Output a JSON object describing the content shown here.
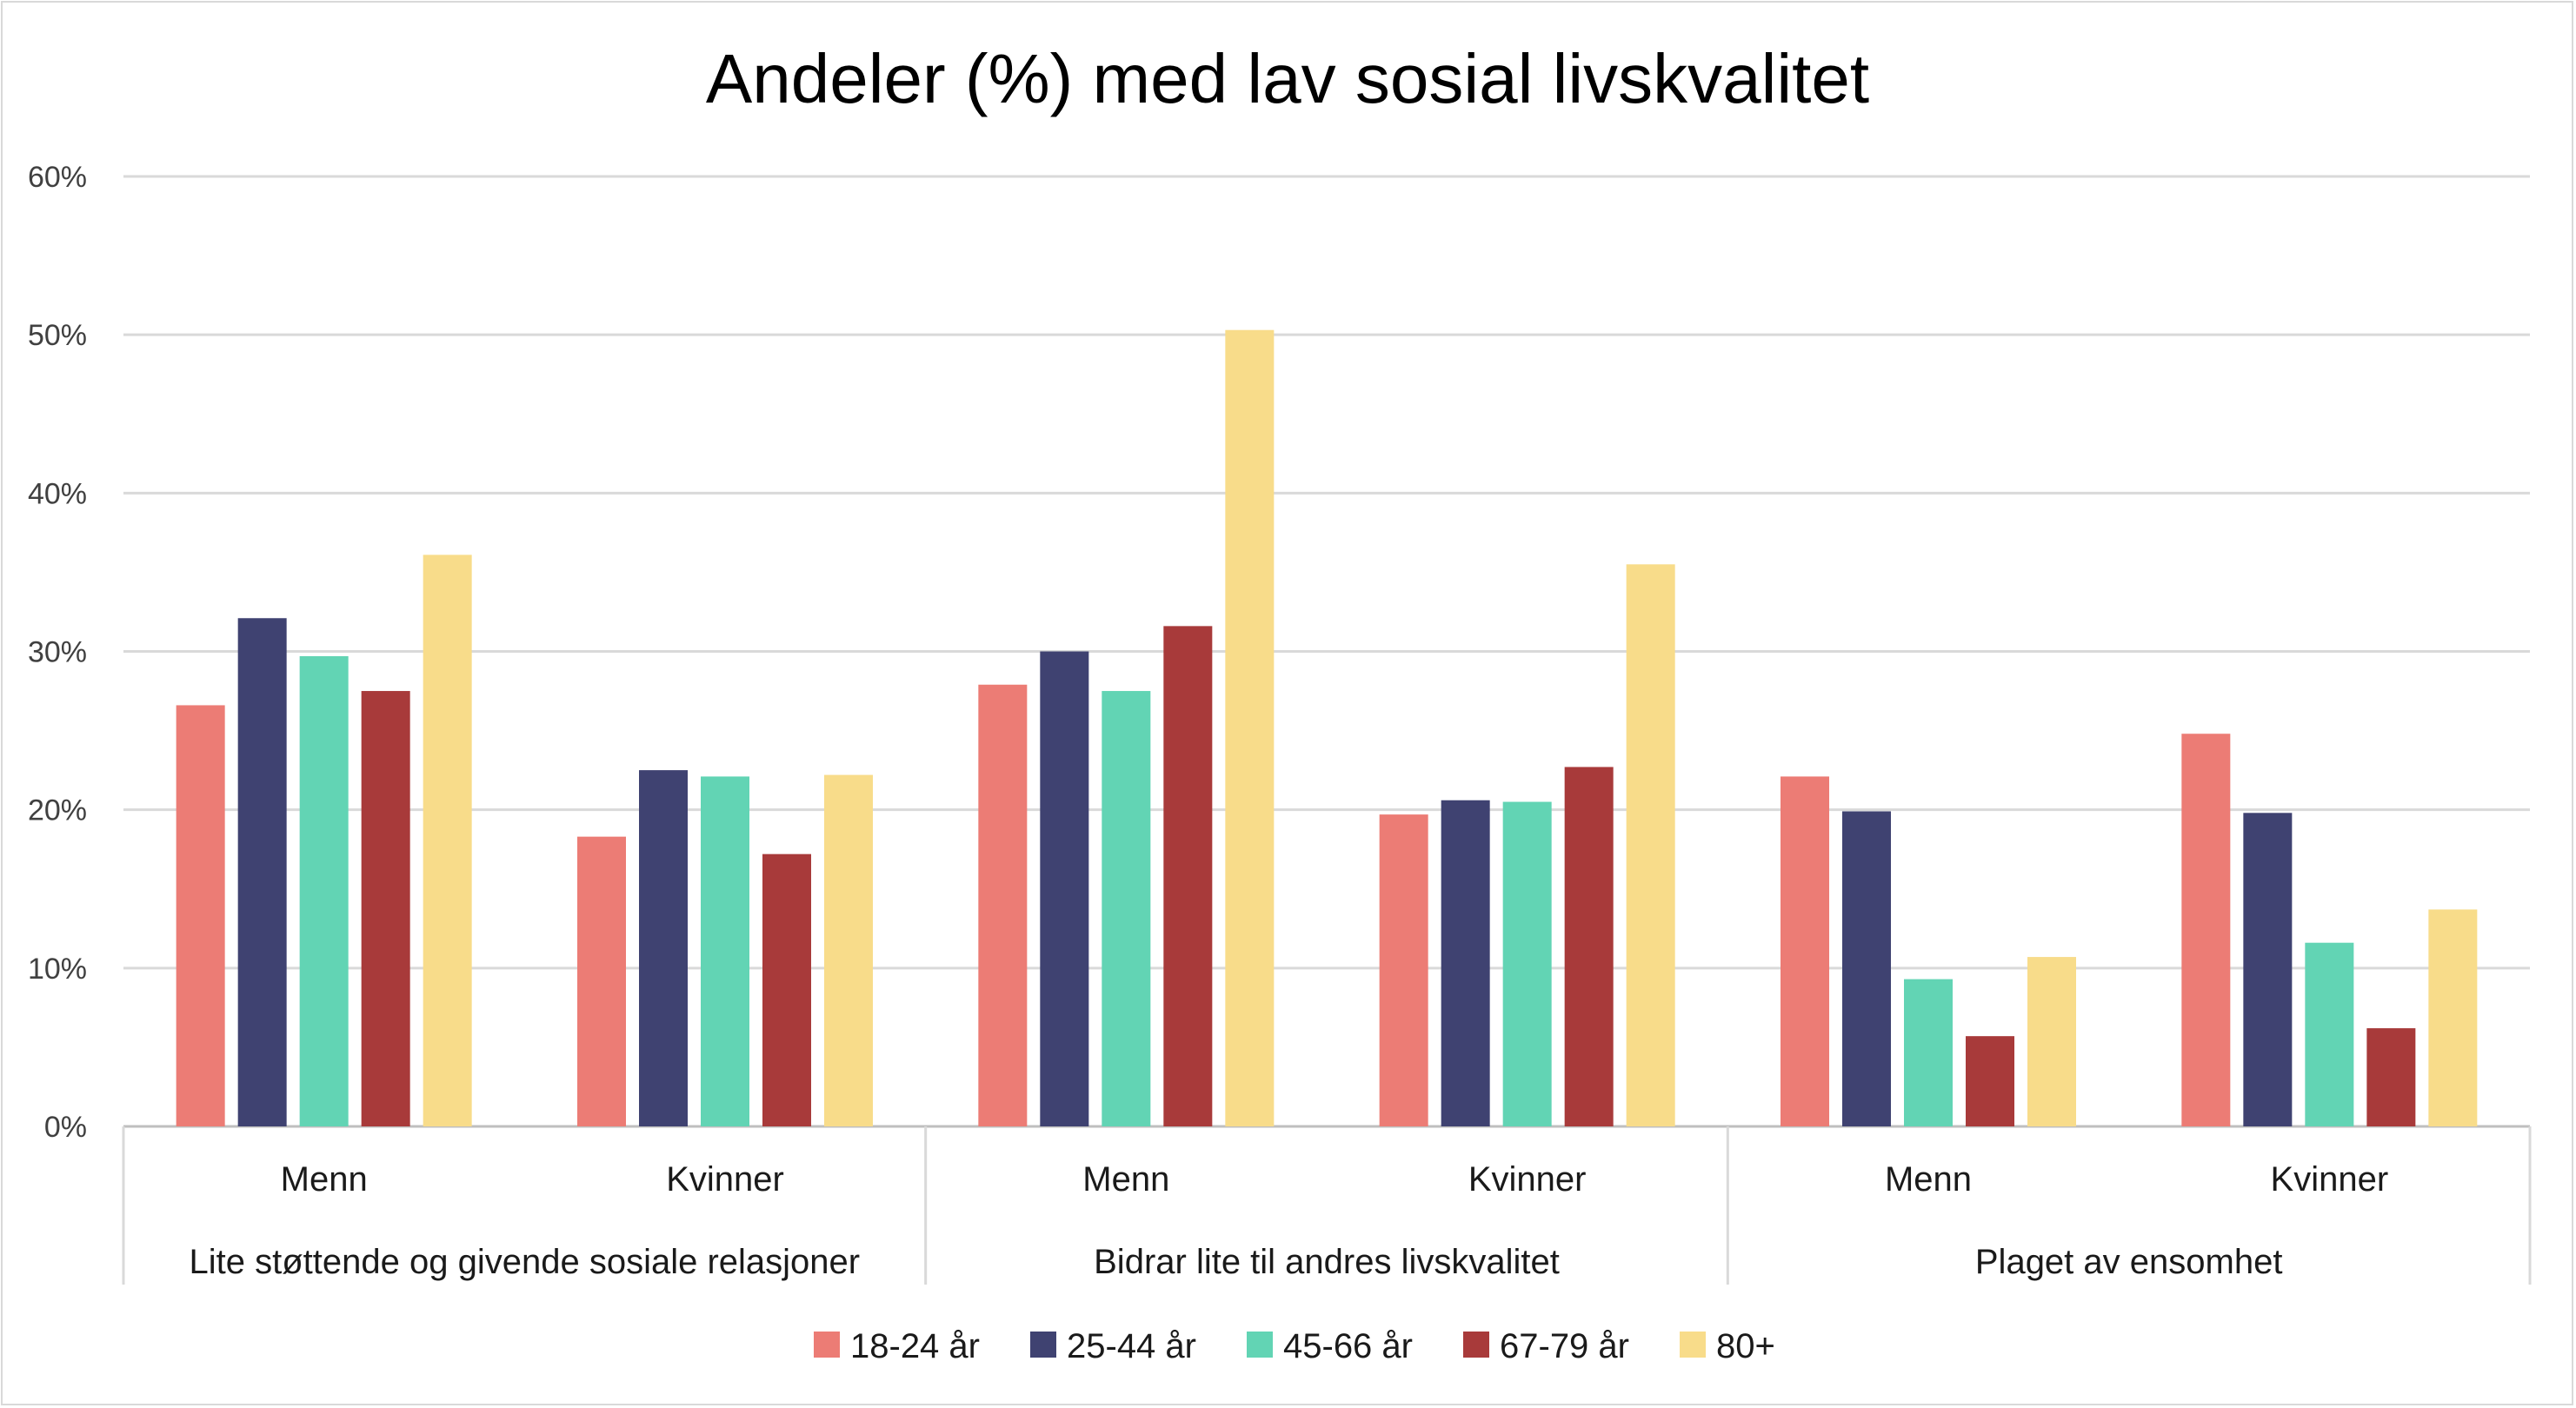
{
  "chart_data": {
    "type": "bar",
    "title": "Andeler (%) med lav sosial livskvalitet",
    "ylim": [
      0,
      60
    ],
    "yticks": [
      "0%",
      "10%",
      "20%",
      "30%",
      "40%",
      "50%",
      "60%"
    ],
    "grid": true,
    "legend_position": "bottom",
    "groups": [
      {
        "label": "Lite støttende og givende sosiale relasjoner",
        "subgroups": [
          "Menn",
          "Kvinner"
        ]
      },
      {
        "label": "Bidrar lite til andres livskvalitet",
        "subgroups": [
          "Menn",
          "Kvinner"
        ]
      },
      {
        "label": "Plaget av ensomhet",
        "subgroups": [
          "Menn",
          "Kvinner"
        ]
      }
    ],
    "categories": [
      "Lite støttende og givende sosiale relasjoner / Menn",
      "Lite støttende og givende sosiale relasjoner / Kvinner",
      "Bidrar lite til andres livskvalitet / Menn",
      "Bidrar lite til andres livskvalitet / Kvinner",
      "Plaget av ensomhet / Menn",
      "Plaget av ensomhet / Kvinner"
    ],
    "series": [
      {
        "name": "18-24 år",
        "color": "#ec7c75",
        "values": [
          26.6,
          18.3,
          27.9,
          19.7,
          22.1,
          24.8
        ]
      },
      {
        "name": "25-44 år",
        "color": "#3f4271",
        "values": [
          32.1,
          22.5,
          30.0,
          20.6,
          19.9,
          19.8
        ]
      },
      {
        "name": "45-66 år",
        "color": "#62d4b4",
        "values": [
          29.7,
          22.1,
          27.5,
          20.5,
          9.3,
          11.6
        ]
      },
      {
        "name": "67-79 år",
        "color": "#a83a3a",
        "values": [
          27.5,
          17.2,
          31.6,
          22.7,
          5.7,
          6.2
        ]
      },
      {
        "name": "80+",
        "color": "#f8dc8a",
        "values": [
          36.1,
          22.2,
          50.3,
          35.5,
          10.7,
          13.7
        ]
      }
    ]
  }
}
